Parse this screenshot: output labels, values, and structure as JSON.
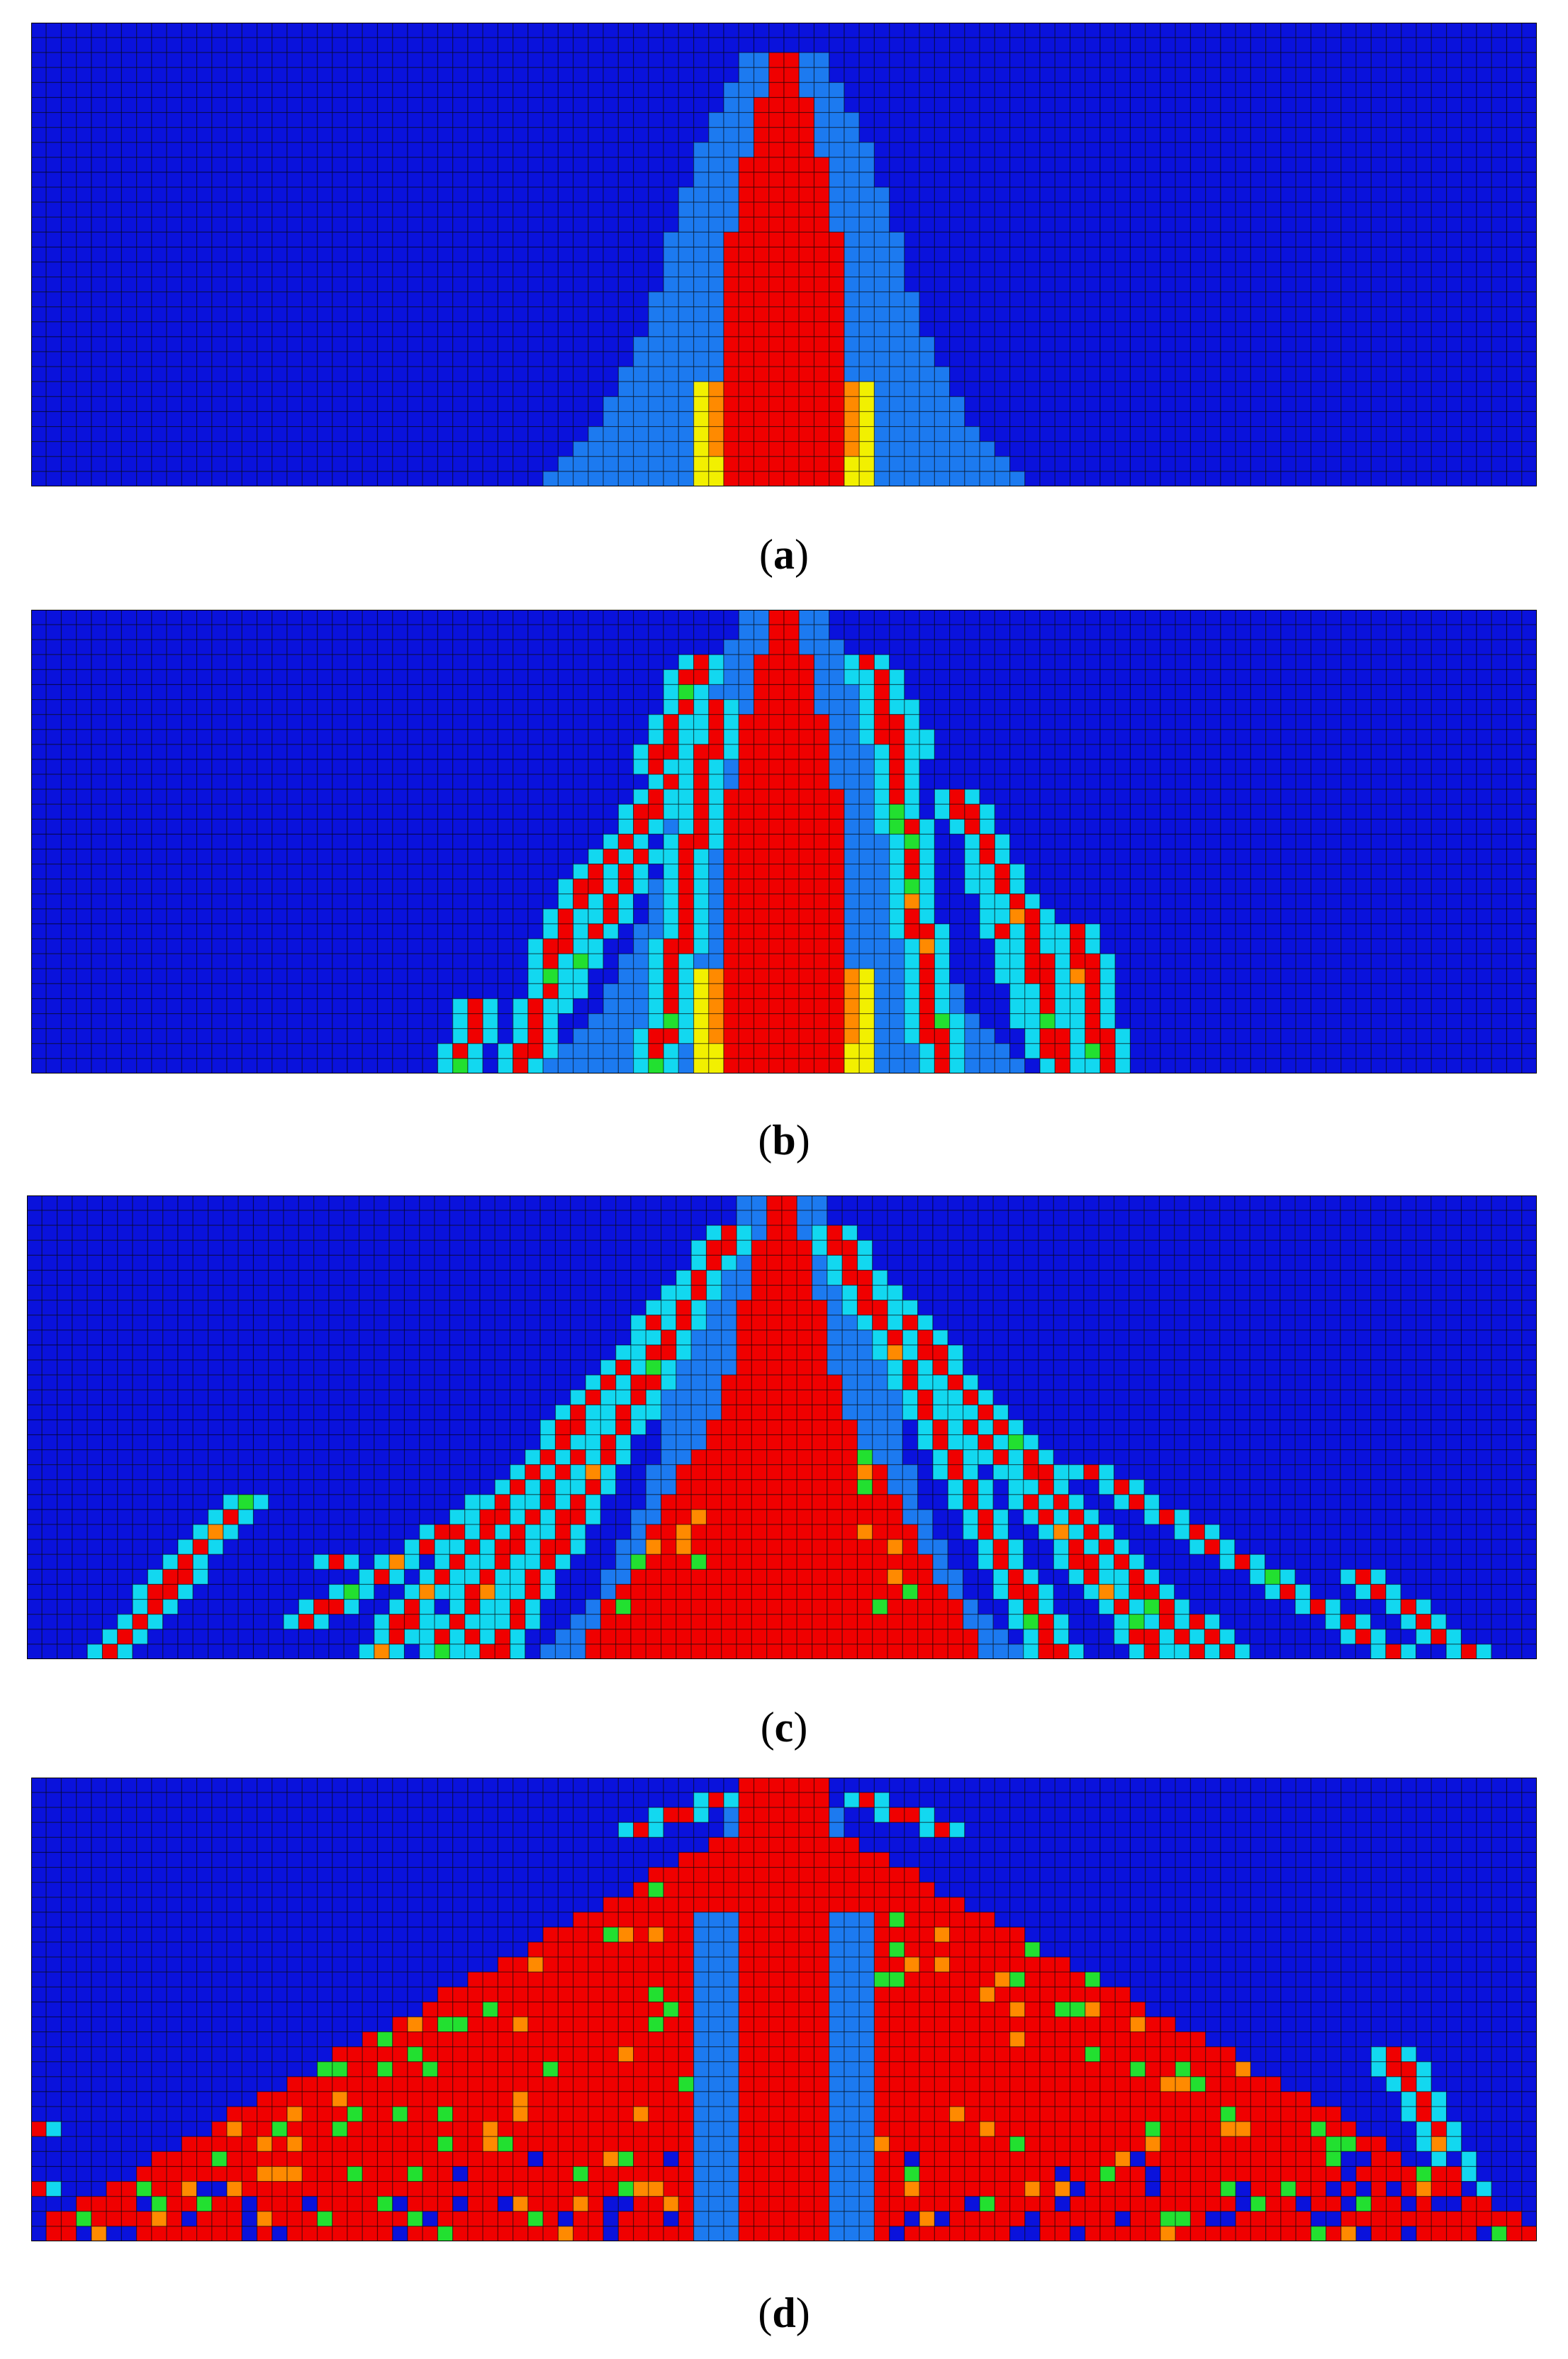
{
  "figure": {
    "panels": [
      {
        "id": "a",
        "caption_open": "(",
        "caption_letter": "a",
        "caption_close": ")"
      },
      {
        "id": "b",
        "caption_open": "(",
        "caption_letter": "b",
        "caption_close": ")"
      },
      {
        "id": "c",
        "caption_open": "(",
        "caption_letter": "c",
        "caption_close": ")"
      },
      {
        "id": "d",
        "caption_open": "(",
        "caption_letter": "d",
        "caption_close": ")"
      }
    ],
    "colormap": [
      "#0a12dc",
      "#1c7af0",
      "#12d8f0",
      "#22e030",
      "#f2f000",
      "#ff8a00",
      "#f00000"
    ],
    "mesh_color": "#000000"
  }
}
